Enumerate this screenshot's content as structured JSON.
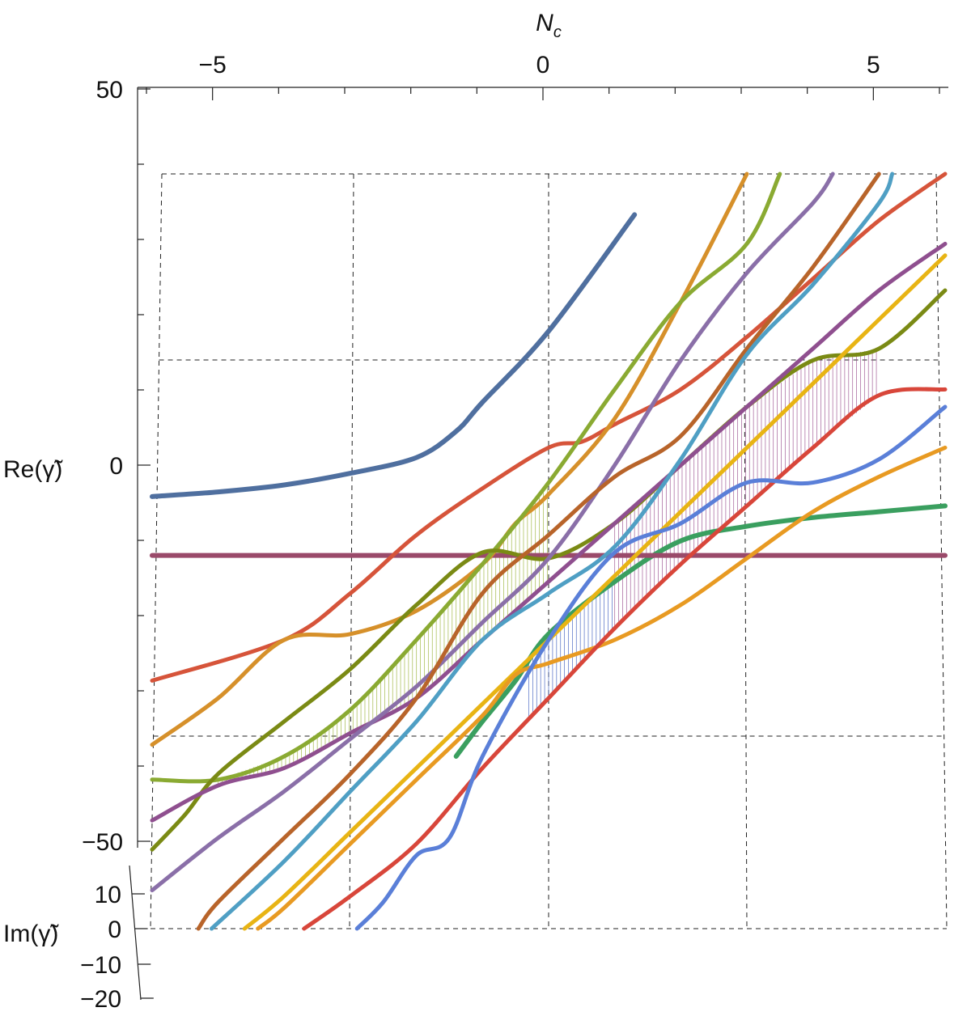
{
  "chart_data": {
    "type": "line",
    "title": "",
    "xlabel": "N_c",
    "ylabel_re": "Re(γ̃)",
    "ylabel_im": "Im(γ̃)",
    "xlim": [
      -6,
      6
    ],
    "re_lim": [
      -50,
      50
    ],
    "im_lim": [
      -20,
      10
    ],
    "x_ticks": [
      -5,
      0,
      5
    ],
    "x_tick_labels": [
      "−5",
      "0",
      "5"
    ],
    "re_ticks": [
      50,
      0,
      -50
    ],
    "re_tick_labels": [
      "50",
      "0",
      "−50"
    ],
    "im_ticks": [
      10,
      0,
      -10,
      -20
    ],
    "im_tick_labels": [
      "10",
      "0",
      "−10",
      "−20"
    ],
    "grid": true,
    "hatched_regions": [
      {
        "name": "hatch-green-upper",
        "color": "#9bb43a"
      },
      {
        "name": "hatch-purple-lower",
        "color": "#9a4f8f"
      },
      {
        "name": "hatch-blue",
        "color": "#3f5fbf"
      }
    ],
    "series": [
      {
        "name": "slate-blue",
        "color": "#4f6f9f",
        "width": 6,
        "x": [
          -6,
          -5,
          -4,
          -3,
          -2,
          -1.4,
          -1,
          0,
          1.3
        ],
        "re": [
          -5.4,
          -4.6,
          -3.4,
          -1.4,
          1.3,
          5.8,
          10.8,
          23,
          43
        ]
      },
      {
        "name": "dark-green",
        "color": "#3a9f5f",
        "width": 6,
        "x": [
          -1.4,
          -1,
          -0.5,
          0,
          1,
          2,
          3,
          4,
          5,
          6
        ],
        "re": [
          -50,
          -44,
          -37,
          -29,
          -20,
          -13,
          -10.5,
          -9,
          -8,
          -7
        ]
      },
      {
        "name": "mauve-flat",
        "color": "#9a4a6a",
        "width": 6,
        "x": [
          -6,
          -3,
          0,
          3,
          6
        ],
        "re": [
          -15.5,
          -15.5,
          -15.5,
          -15.5,
          -15.5
        ]
      },
      {
        "name": "red-main",
        "color": "#d6543a",
        "width": 5,
        "x": [
          -6,
          -4,
          -3,
          -2,
          -1,
          0,
          0.5,
          1,
          2,
          3,
          4,
          5,
          6
        ],
        "re": [
          -37,
          -30,
          -22,
          -12,
          -4,
          3,
          4,
          7,
          13,
          22,
          32,
          42,
          50
        ]
      },
      {
        "name": "orange-upper",
        "color": "#d6902a",
        "width": 5,
        "x": [
          -6,
          -5,
          -4,
          -3,
          -2,
          -1,
          -0.5,
          0,
          1,
          2,
          3
        ],
        "re": [
          -48,
          -40,
          -30,
          -29,
          -25,
          -17,
          -10,
          -5,
          8,
          28,
          50
        ]
      },
      {
        "name": "olive-green",
        "color": "#8aaa32",
        "width": 5,
        "x": [
          -6,
          -5,
          -4,
          -3,
          -2,
          -1,
          0,
          1,
          2,
          3,
          3.5
        ],
        "re": [
          -54,
          -54,
          -50,
          -42,
          -30,
          -17,
          -3,
          13,
          28,
          38,
          50
        ]
      },
      {
        "name": "dark-olive",
        "color": "#7a8a14",
        "width": 5,
        "x": [
          -6,
          -5.5,
          -5,
          -4,
          -3,
          -2,
          -1,
          0,
          1,
          2,
          3,
          4,
          5,
          6
        ],
        "re": [
          -66,
          -60,
          -53,
          -44,
          -35,
          -24,
          -15,
          -16,
          -10,
          0,
          10,
          18,
          20,
          30
        ]
      },
      {
        "name": "purple-lower",
        "color": "#8f4f8f",
        "width": 5,
        "x": [
          -6,
          -5,
          -4,
          -3,
          -2,
          -1,
          0,
          1,
          2,
          3,
          4,
          5,
          6
        ],
        "re": [
          -61,
          -55,
          -52,
          -46,
          -40,
          -30,
          -20,
          -10,
          0,
          10,
          20,
          30,
          38
        ]
      },
      {
        "name": "violet",
        "color": "#8a6fa8",
        "width": 5,
        "x": [
          -6,
          -5,
          -4,
          -3,
          -2,
          -1,
          0,
          1,
          2,
          3,
          4,
          4.3
        ],
        "re": [
          -73,
          -64,
          -56,
          -47,
          -38,
          -27,
          -16,
          0,
          18,
          33,
          45,
          50
        ]
      },
      {
        "name": "brown",
        "color": "#b8642a",
        "width": 5,
        "x": [
          -5.3,
          -5,
          -4,
          -3,
          -2,
          -1,
          0,
          1,
          2,
          3,
          4,
          5
        ],
        "re": [
          -80,
          -75,
          -64,
          -53,
          -40,
          -22,
          -12,
          -2,
          5,
          20,
          34,
          50
        ]
      },
      {
        "name": "steel-blue",
        "color": "#4f9fc4",
        "width": 5,
        "x": [
          -5.1,
          -4,
          -3,
          -2,
          -1,
          0,
          1,
          2,
          3,
          4,
          5,
          5.2
        ],
        "re": [
          -80,
          -68,
          -56,
          -44,
          -30,
          -22,
          -14,
          1,
          19,
          31,
          45,
          50
        ]
      },
      {
        "name": "gold",
        "color": "#e8b414",
        "width": 5,
        "x": [
          -4.6,
          -4,
          -3,
          -2,
          -1,
          0,
          1,
          2,
          3,
          4,
          5,
          6
        ],
        "re": [
          -80,
          -74,
          -63,
          -52,
          -41,
          -30,
          -19,
          -8,
          3,
          14,
          25,
          36
        ]
      },
      {
        "name": "orange-lower",
        "color": "#e89a22",
        "width": 5,
        "x": [
          -4.4,
          -4,
          -3,
          -2,
          -1,
          -0.5,
          0,
          1,
          2,
          3,
          4,
          5,
          6
        ],
        "re": [
          -80,
          -76,
          -65,
          -54,
          -43,
          -36,
          -34,
          -30,
          -24,
          -16,
          -8,
          -2,
          3
        ]
      },
      {
        "name": "red-lower",
        "color": "#d8463a",
        "width": 5,
        "x": [
          -3.7,
          -3,
          -2,
          -1,
          0,
          1,
          2,
          3,
          4,
          5,
          6
        ],
        "re": [
          -80,
          -74,
          -65,
          -52,
          -40,
          -28,
          -17,
          -7,
          3,
          12,
          13
        ]
      },
      {
        "name": "royal-blue",
        "color": "#5a7fd8",
        "width": 5,
        "x": [
          -2.9,
          -2.5,
          -2,
          -1.5,
          -1,
          0,
          1,
          2,
          3,
          4,
          5,
          6
        ],
        "re": [
          -80,
          -75,
          -67,
          -64,
          -50,
          -30,
          -15,
          -10,
          -3,
          -3,
          1,
          10
        ]
      }
    ]
  }
}
